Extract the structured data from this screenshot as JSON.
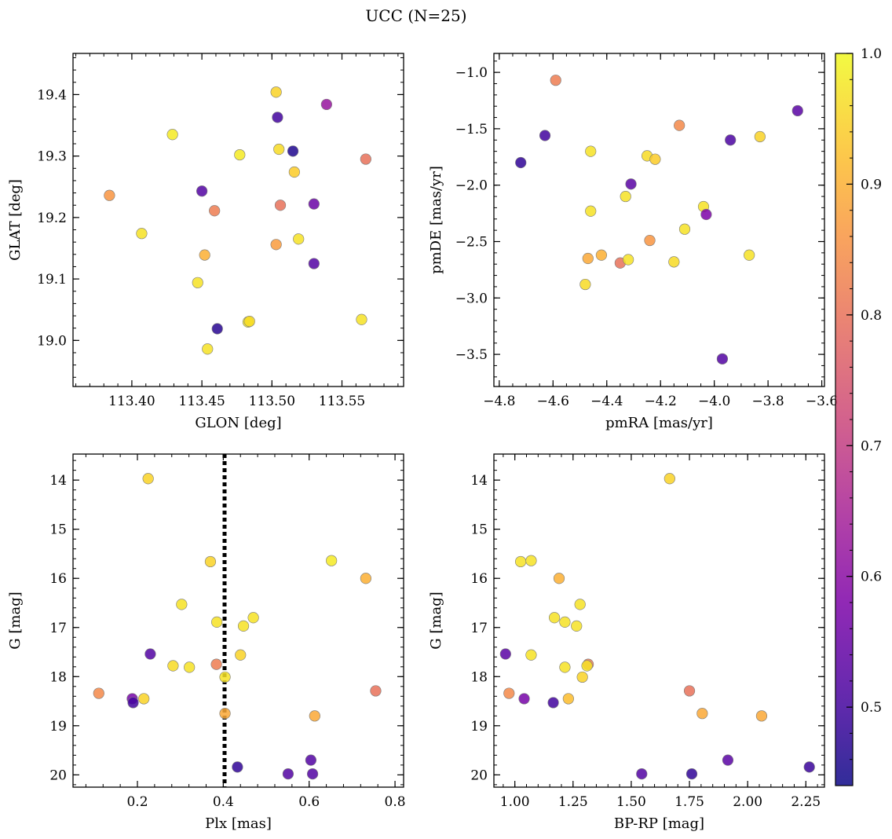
{
  "title": "UCC (N=25)",
  "colorbar": {
    "min": 0.44,
    "max": 1.0,
    "ticks": [
      "0.5",
      "0.6",
      "0.7",
      "0.8",
      "0.9",
      "1.0"
    ],
    "tick_values": [
      0.5,
      0.6,
      0.7,
      0.8,
      0.9,
      1.0
    ]
  },
  "colors": {
    "axis": "#000000",
    "marker_edge": "#7a7a7a",
    "vline": "#000000"
  },
  "chart_data": [
    {
      "id": "glon-glat",
      "type": "scatter",
      "xlabel": "GLON [deg]",
      "ylabel": "GLAT [deg]",
      "xlim": [
        113.358,
        113.594
      ],
      "ylim": [
        18.925,
        19.467
      ],
      "xticks": [
        113.4,
        113.45,
        113.5,
        113.55
      ],
      "xtick_labels": [
        "113.40",
        "113.45",
        "113.50",
        "113.55"
      ],
      "yticks": [
        19.0,
        19.1,
        19.2,
        19.3,
        19.4
      ],
      "ytick_labels": [
        "19.0",
        "19.1",
        "19.2",
        "19.3",
        "19.4"
      ],
      "xminor": 0.01,
      "yminor": 0.02,
      "invert_y": false,
      "points": [
        {
          "x": 113.384,
          "y": 19.236,
          "c": 0.86
        },
        {
          "x": 113.407,
          "y": 19.174,
          "c": 0.97
        },
        {
          "x": 113.429,
          "y": 19.335,
          "c": 0.98
        },
        {
          "x": 113.447,
          "y": 19.094,
          "c": 0.97
        },
        {
          "x": 113.45,
          "y": 19.243,
          "c": 0.52
        },
        {
          "x": 113.452,
          "y": 19.139,
          "c": 0.9
        },
        {
          "x": 113.454,
          "y": 18.986,
          "c": 0.97
        },
        {
          "x": 113.459,
          "y": 19.211,
          "c": 0.82
        },
        {
          "x": 113.461,
          "y": 19.019,
          "c": 0.47
        },
        {
          "x": 113.477,
          "y": 19.302,
          "c": 0.98
        },
        {
          "x": 113.483,
          "y": 19.03,
          "c": 0.98
        },
        {
          "x": 113.484,
          "y": 19.031,
          "c": 0.96
        },
        {
          "x": 113.503,
          "y": 19.404,
          "c": 0.95
        },
        {
          "x": 113.503,
          "y": 19.156,
          "c": 0.87
        },
        {
          "x": 113.504,
          "y": 19.363,
          "c": 0.5
        },
        {
          "x": 113.505,
          "y": 19.311,
          "c": 0.96
        },
        {
          "x": 113.506,
          "y": 19.22,
          "c": 0.8
        },
        {
          "x": 113.515,
          "y": 19.308,
          "c": 0.46
        },
        {
          "x": 113.516,
          "y": 19.274,
          "c": 0.94
        },
        {
          "x": 113.519,
          "y": 19.165,
          "c": 0.97
        },
        {
          "x": 113.53,
          "y": 19.222,
          "c": 0.55
        },
        {
          "x": 113.53,
          "y": 19.125,
          "c": 0.52
        },
        {
          "x": 113.539,
          "y": 19.384,
          "c": 0.62
        },
        {
          "x": 113.564,
          "y": 19.034,
          "c": 0.97
        },
        {
          "x": 113.567,
          "y": 19.295,
          "c": 0.8
        }
      ]
    },
    {
      "id": "pmra-pmde",
      "type": "scatter",
      "xlabel": "pmRA [mas/yr]",
      "ylabel": "pmDE [mas/yr]",
      "xlim": [
        -4.82,
        -3.59
      ],
      "ylim": [
        -3.785,
        -0.832
      ],
      "xticks": [
        -4.8,
        -4.6,
        -4.4,
        -4.2,
        -4.0,
        -3.8,
        -3.6
      ],
      "xtick_labels": [
        "−4.8",
        "−4.6",
        "−4.4",
        "−4.2",
        "−4.0",
        "−3.8",
        "−3.6"
      ],
      "yticks": [
        -3.5,
        -3.0,
        -2.5,
        -2.0,
        -1.5,
        -1.0
      ],
      "ytick_labels": [
        "−3.5",
        "−3.0",
        "−2.5",
        "−2.0",
        "−1.5",
        "−1.0"
      ],
      "xminor": 0.05,
      "yminor": 0.1,
      "invert_y": false,
      "points": [
        {
          "x": -4.72,
          "y": -1.8,
          "c": 0.48
        },
        {
          "x": -4.63,
          "y": -1.56,
          "c": 0.5
        },
        {
          "x": -4.59,
          "y": -1.07,
          "c": 0.82
        },
        {
          "x": -4.48,
          "y": -2.88,
          "c": 0.96
        },
        {
          "x": -4.47,
          "y": -2.65,
          "c": 0.89
        },
        {
          "x": -4.46,
          "y": -1.7,
          "c": 0.97
        },
        {
          "x": -4.46,
          "y": -2.23,
          "c": 0.97
        },
        {
          "x": -4.42,
          "y": -2.62,
          "c": 0.9
        },
        {
          "x": -4.35,
          "y": -2.69,
          "c": 0.8
        },
        {
          "x": -4.33,
          "y": -2.1,
          "c": 0.97
        },
        {
          "x": -4.32,
          "y": -2.66,
          "c": 0.97
        },
        {
          "x": -4.31,
          "y": -1.99,
          "c": 0.53
        },
        {
          "x": -4.25,
          "y": -1.74,
          "c": 0.96
        },
        {
          "x": -4.24,
          "y": -2.49,
          "c": 0.86
        },
        {
          "x": -4.22,
          "y": -1.77,
          "c": 0.94
        },
        {
          "x": -4.15,
          "y": -2.68,
          "c": 0.96
        },
        {
          "x": -4.13,
          "y": -1.47,
          "c": 0.84
        },
        {
          "x": -4.11,
          "y": -2.39,
          "c": 0.97
        },
        {
          "x": -4.04,
          "y": -2.19,
          "c": 0.97
        },
        {
          "x": -4.03,
          "y": -2.26,
          "c": 0.58
        },
        {
          "x": -3.97,
          "y": -3.54,
          "c": 0.52
        },
        {
          "x": -3.94,
          "y": -1.6,
          "c": 0.51
        },
        {
          "x": -3.87,
          "y": -2.62,
          "c": 0.97
        },
        {
          "x": -3.83,
          "y": -1.57,
          "c": 0.95
        },
        {
          "x": -3.69,
          "y": -1.34,
          "c": 0.53
        }
      ]
    },
    {
      "id": "plx-g",
      "type": "scatter",
      "xlabel": "Plx [mas]",
      "ylabel": "G [mag]",
      "xlim": [
        0.05,
        0.82
      ],
      "ylim": [
        20.25,
        13.47
      ],
      "xticks": [
        0.2,
        0.4,
        0.6,
        0.8
      ],
      "xtick_labels": [
        "0.2",
        "0.4",
        "0.6",
        "0.8"
      ],
      "yticks": [
        14,
        15,
        16,
        17,
        18,
        19,
        20
      ],
      "ytick_labels": [
        "14",
        "15",
        "16",
        "17",
        "18",
        "19",
        "20"
      ],
      "xminor": 0.04,
      "yminor": 0.2,
      "invert_y": true,
      "vline": 0.403,
      "points": [
        {
          "x": 0.225,
          "y": 13.97,
          "c": 0.95
        },
        {
          "x": 0.37,
          "y": 15.66,
          "c": 0.95
        },
        {
          "x": 0.652,
          "y": 15.64,
          "c": 0.98
        },
        {
          "x": 0.732,
          "y": 16.0,
          "c": 0.9
        },
        {
          "x": 0.303,
          "y": 16.53,
          "c": 0.97
        },
        {
          "x": 0.47,
          "y": 16.8,
          "c": 0.97
        },
        {
          "x": 0.385,
          "y": 16.89,
          "c": 0.97
        },
        {
          "x": 0.447,
          "y": 16.97,
          "c": 0.97
        },
        {
          "x": 0.44,
          "y": 17.56,
          "c": 0.95
        },
        {
          "x": 0.23,
          "y": 17.54,
          "c": 0.52
        },
        {
          "x": 0.384,
          "y": 17.75,
          "c": 0.82
        },
        {
          "x": 0.283,
          "y": 17.78,
          "c": 0.96
        },
        {
          "x": 0.321,
          "y": 17.81,
          "c": 0.97
        },
        {
          "x": 0.404,
          "y": 18.01,
          "c": 0.97
        },
        {
          "x": 0.11,
          "y": 18.34,
          "c": 0.84
        },
        {
          "x": 0.755,
          "y": 18.29,
          "c": 0.8
        },
        {
          "x": 0.188,
          "y": 18.45,
          "c": 0.57
        },
        {
          "x": 0.215,
          "y": 18.45,
          "c": 0.95
        },
        {
          "x": 0.19,
          "y": 18.53,
          "c": 0.5
        },
        {
          "x": 0.404,
          "y": 18.75,
          "c": 0.89
        },
        {
          "x": 0.613,
          "y": 18.8,
          "c": 0.89
        },
        {
          "x": 0.604,
          "y": 19.7,
          "c": 0.52
        },
        {
          "x": 0.433,
          "y": 19.84,
          "c": 0.48
        },
        {
          "x": 0.551,
          "y": 19.98,
          "c": 0.52
        },
        {
          "x": 0.608,
          "y": 19.98,
          "c": 0.52
        }
      ]
    },
    {
      "id": "bprp-g",
      "type": "scatter",
      "xlabel": "BP-RP [mag]",
      "ylabel": "G [mag]",
      "xlim": [
        0.91,
        2.33
      ],
      "ylim": [
        20.25,
        13.47
      ],
      "xticks": [
        1.0,
        1.25,
        1.5,
        1.75,
        2.0,
        2.25
      ],
      "xtick_labels": [
        "1.00",
        "1.25",
        "1.50",
        "1.75",
        "2.00",
        "2.25"
      ],
      "yticks": [
        14,
        15,
        16,
        17,
        18,
        19,
        20
      ],
      "ytick_labels": [
        "14",
        "15",
        "16",
        "17",
        "18",
        "19",
        "20"
      ],
      "xminor": 0.05,
      "yminor": 0.2,
      "invert_y": true,
      "points": [
        {
          "x": 1.665,
          "y": 13.97,
          "c": 0.95
        },
        {
          "x": 1.025,
          "y": 15.66,
          "c": 0.97
        },
        {
          "x": 1.07,
          "y": 15.64,
          "c": 0.97
        },
        {
          "x": 1.19,
          "y": 16.0,
          "c": 0.9
        },
        {
          "x": 1.28,
          "y": 16.53,
          "c": 0.97
        },
        {
          "x": 1.17,
          "y": 16.8,
          "c": 0.97
        },
        {
          "x": 1.215,
          "y": 16.89,
          "c": 0.97
        },
        {
          "x": 1.265,
          "y": 16.97,
          "c": 0.97
        },
        {
          "x": 1.07,
          "y": 17.56,
          "c": 0.97
        },
        {
          "x": 0.96,
          "y": 17.54,
          "c": 0.53
        },
        {
          "x": 1.315,
          "y": 17.75,
          "c": 0.82
        },
        {
          "x": 1.215,
          "y": 17.81,
          "c": 0.97
        },
        {
          "x": 1.31,
          "y": 17.78,
          "c": 0.97
        },
        {
          "x": 1.29,
          "y": 18.01,
          "c": 0.95
        },
        {
          "x": 0.975,
          "y": 18.34,
          "c": 0.84
        },
        {
          "x": 1.75,
          "y": 18.29,
          "c": 0.8
        },
        {
          "x": 1.04,
          "y": 18.45,
          "c": 0.57
        },
        {
          "x": 1.23,
          "y": 18.45,
          "c": 0.92
        },
        {
          "x": 1.165,
          "y": 18.53,
          "c": 0.5
        },
        {
          "x": 1.805,
          "y": 18.75,
          "c": 0.89
        },
        {
          "x": 2.06,
          "y": 18.8,
          "c": 0.89
        },
        {
          "x": 1.915,
          "y": 19.7,
          "c": 0.53
        },
        {
          "x": 2.265,
          "y": 19.84,
          "c": 0.49
        },
        {
          "x": 1.545,
          "y": 19.98,
          "c": 0.52
        },
        {
          "x": 1.76,
          "y": 19.98,
          "c": 0.48
        }
      ]
    }
  ]
}
